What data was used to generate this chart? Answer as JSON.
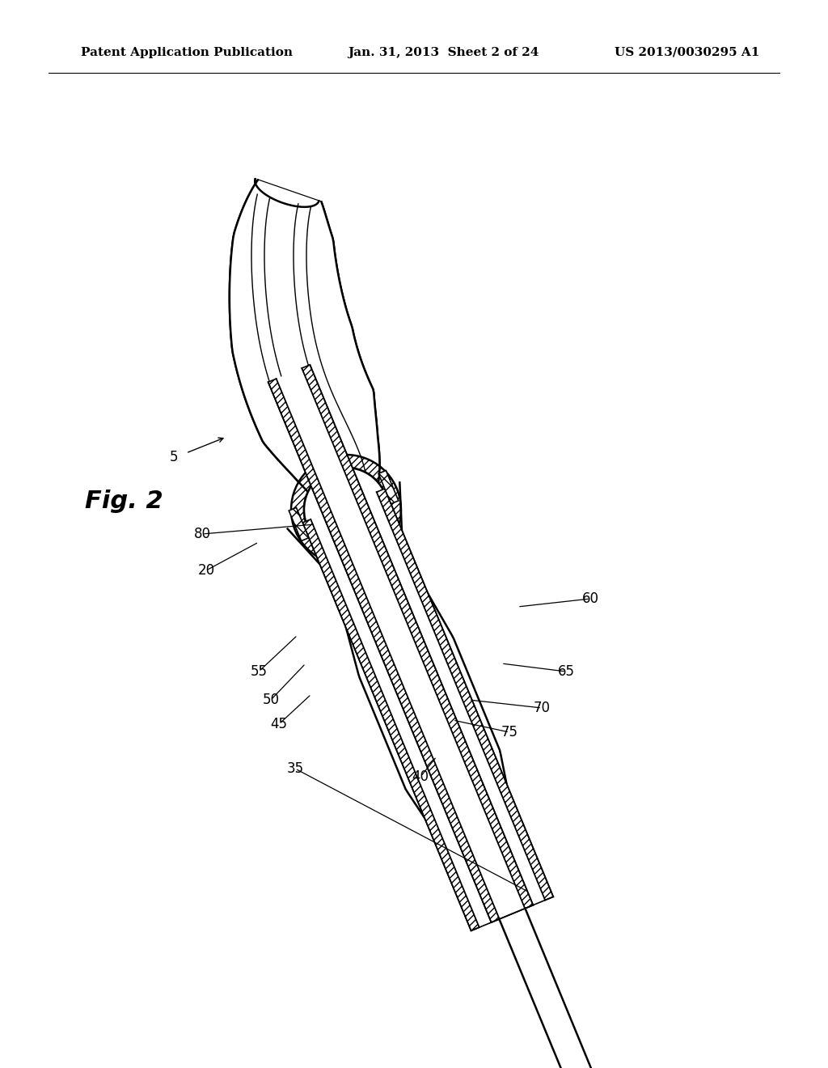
{
  "background_color": "#ffffff",
  "header_left": "Patent Application Publication",
  "header_center": "Jan. 31, 2013  Sheet 2 of 24",
  "header_right": "US 2013/0030295 A1",
  "fig_label": "Fig. 2",
  "line_color": "#000000",
  "hatch_color": "#000000",
  "fill_color": "#ffffff"
}
